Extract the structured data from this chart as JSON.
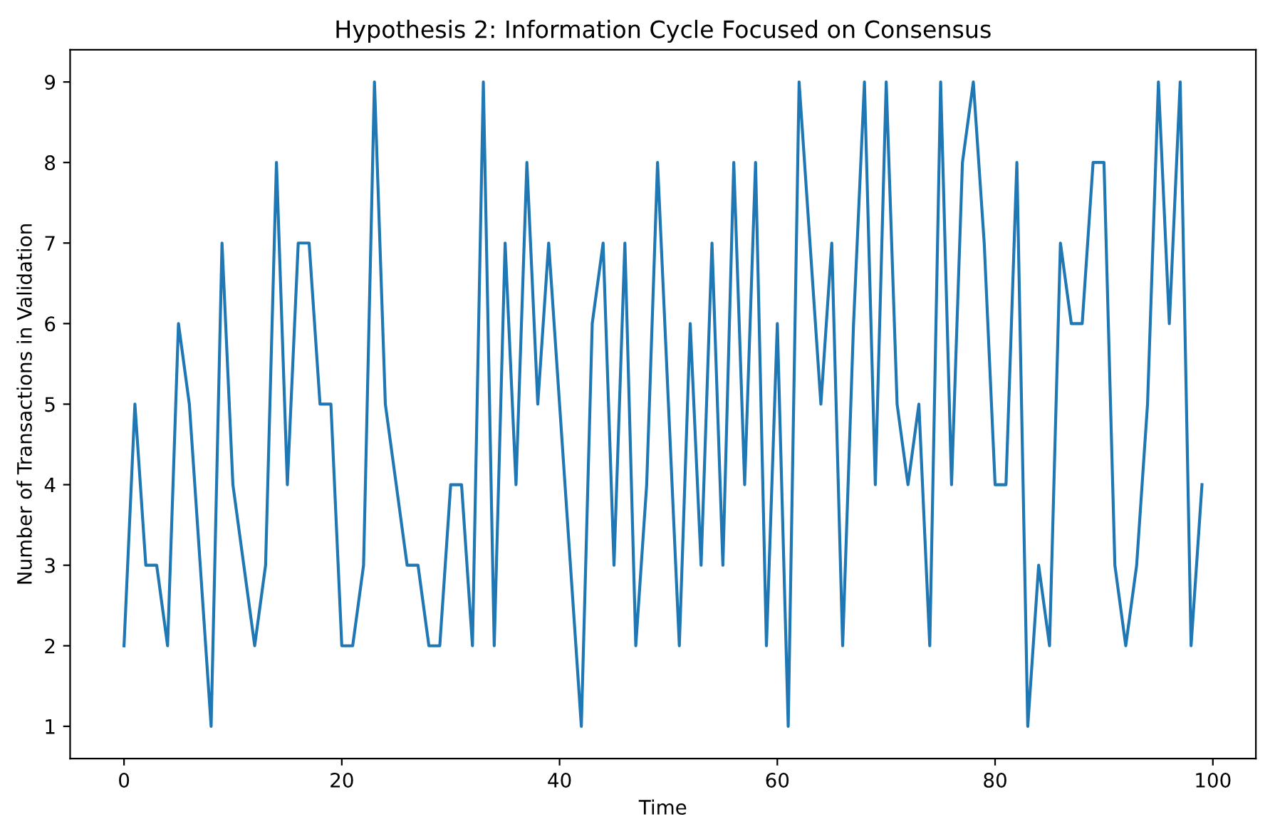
{
  "chart_data": {
    "type": "line",
    "title": "Hypothesis 2: Information Cycle Focused on Consensus",
    "xlabel": "Time",
    "ylabel": "Number of Transactions in Validation",
    "x": [
      0,
      1,
      2,
      3,
      4,
      5,
      6,
      7,
      8,
      9,
      10,
      11,
      12,
      13,
      14,
      15,
      16,
      17,
      18,
      19,
      20,
      21,
      22,
      23,
      24,
      25,
      26,
      27,
      28,
      29,
      30,
      31,
      32,
      33,
      34,
      35,
      36,
      37,
      38,
      39,
      40,
      41,
      42,
      43,
      44,
      45,
      46,
      47,
      48,
      49,
      50,
      51,
      52,
      53,
      54,
      55,
      56,
      57,
      58,
      59,
      60,
      61,
      62,
      63,
      64,
      65,
      66,
      67,
      68,
      69,
      70,
      71,
      72,
      73,
      74,
      75,
      76,
      77,
      78,
      79,
      80,
      81,
      82,
      83,
      84,
      85,
      86,
      87,
      88,
      89,
      90,
      91,
      92,
      93,
      94,
      95,
      96,
      97,
      98,
      99
    ],
    "series": [
      {
        "color": "#1f77b4",
        "values": [
          2,
          5,
          3,
          3,
          2,
          6,
          5,
          3,
          1,
          7,
          4,
          3,
          2,
          3,
          8,
          4,
          7,
          7,
          5,
          5,
          2,
          2,
          3,
          9,
          5,
          4,
          3,
          3,
          2,
          2,
          4,
          4,
          2,
          9,
          2,
          7,
          4,
          8,
          5,
          7,
          5,
          3,
          1,
          6,
          7,
          3,
          7,
          2,
          4,
          8,
          5,
          2,
          6,
          3,
          7,
          3,
          8,
          4,
          8,
          2,
          6,
          1,
          9,
          7,
          5,
          7,
          2,
          6,
          9,
          4,
          9,
          5,
          4,
          5,
          2,
          9,
          4,
          8,
          9,
          7,
          4,
          4,
          8,
          1,
          3,
          2,
          7,
          6,
          6,
          8,
          8,
          3,
          2,
          3,
          5,
          9,
          6,
          9,
          2,
          4
        ]
      }
    ],
    "xlim": [
      -4.95,
      103.95
    ],
    "ylim": [
      0.6,
      9.4
    ],
    "xticks": [
      0,
      20,
      40,
      60,
      80,
      100
    ],
    "yticks": [
      1,
      2,
      3,
      4,
      5,
      6,
      7,
      8,
      9
    ],
    "grid": false,
    "legend": false,
    "marker": "none",
    "line_style": "solid"
  }
}
